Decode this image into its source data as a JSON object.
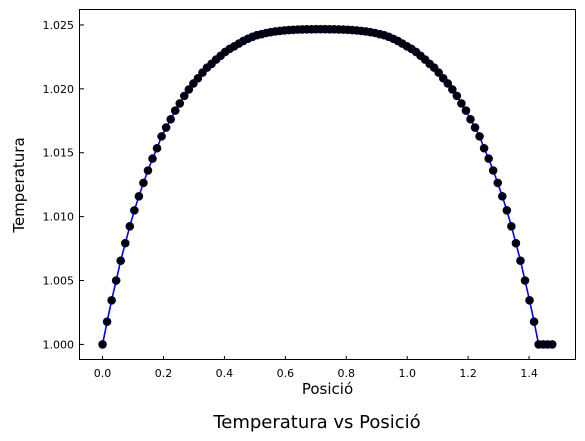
{
  "chart_data": {
    "type": "line",
    "title": "Temperatura vs Posició",
    "xlabel": "Posició",
    "ylabel": "Temperatura",
    "xlim": [
      -0.074,
      1.554
    ],
    "ylim": [
      0.99878,
      1.02617
    ],
    "x_ticks": [
      0.0,
      0.2,
      0.4,
      0.6,
      0.8,
      1.0,
      1.2,
      1.4
    ],
    "x_tick_labels": [
      "0.0",
      "0.2",
      "0.4",
      "0.6",
      "0.8",
      "1.0",
      "1.2",
      "1.4"
    ],
    "y_ticks": [
      1.0,
      1.005,
      1.01,
      1.015,
      1.02,
      1.025
    ],
    "y_tick_labels": [
      "1.000",
      "1.005",
      "1.010",
      "1.015",
      "1.020",
      "1.025"
    ],
    "grid": false,
    "legend": "none",
    "series": [
      {
        "line_color": "#0000ff",
        "marker_color": "#000000",
        "marker": "circle",
        "x": [
          0.0,
          0.0149,
          0.0298,
          0.0447,
          0.0596,
          0.0746,
          0.0895,
          0.1044,
          0.1193,
          0.1342,
          0.1491,
          0.164,
          0.1789,
          0.1938,
          0.2087,
          0.2237,
          0.2386,
          0.2535,
          0.2684,
          0.2833,
          0.2982,
          0.3131,
          0.328,
          0.3429,
          0.3578,
          0.3728,
          0.3877,
          0.4026,
          0.4175,
          0.4324,
          0.4473,
          0.4622,
          0.4771,
          0.492,
          0.5069,
          0.5218,
          0.5368,
          0.5517,
          0.5666,
          0.5815,
          0.5964,
          0.6113,
          0.6262,
          0.6411,
          0.656,
          0.6709,
          0.6859,
          0.7008,
          0.7157,
          0.7306,
          0.7455,
          0.7604,
          0.7753,
          0.7902,
          0.8051,
          0.82,
          0.8349,
          0.8499,
          0.8648,
          0.8797,
          0.8946,
          0.9095,
          0.9244,
          0.9393,
          0.9542,
          0.9691,
          0.984,
          0.999,
          1.0139,
          1.0288,
          1.0437,
          1.0586,
          1.0735,
          1.0884,
          1.1033,
          1.1182,
          1.1331,
          1.1481,
          1.163,
          1.1779,
          1.1928,
          1.2077,
          1.2226,
          1.2375,
          1.2524,
          1.2673,
          1.2822,
          1.2971,
          1.3121,
          1.327,
          1.3419,
          1.3568,
          1.3717,
          1.3866,
          1.4015,
          1.4164,
          1.4313,
          1.4462,
          1.4612,
          1.4761
        ],
        "y": [
          1.0,
          1.00178,
          1.00345,
          1.005,
          1.00655,
          1.00792,
          1.00924,
          1.01049,
          1.01159,
          1.01264,
          1.01361,
          1.01454,
          1.01535,
          1.01628,
          1.01697,
          1.01762,
          1.0183,
          1.01886,
          1.01945,
          1.01995,
          1.02042,
          1.02083,
          1.02127,
          1.02166,
          1.02196,
          1.02229,
          1.02259,
          1.02289,
          1.02313,
          1.02333,
          1.02354,
          1.02375,
          1.02392,
          1.02407,
          1.0242,
          1.02428,
          1.02437,
          1.02443,
          1.02449,
          1.02453,
          1.02457,
          1.0246,
          1.02462,
          1.02464,
          1.02465,
          1.02466,
          1.02466,
          1.02467,
          1.02467,
          1.02467,
          1.02466,
          1.02466,
          1.02465,
          1.02464,
          1.02462,
          1.0246,
          1.02457,
          1.02453,
          1.02449,
          1.02443,
          1.02437,
          1.02428,
          1.0242,
          1.02407,
          1.02392,
          1.02375,
          1.02354,
          1.02333,
          1.02313,
          1.02289,
          1.02259,
          1.02229,
          1.02196,
          1.02166,
          1.02127,
          1.02083,
          1.02042,
          1.01995,
          1.01945,
          1.01886,
          1.0183,
          1.01762,
          1.01697,
          1.01628,
          1.01535,
          1.01454,
          1.01361,
          1.01264,
          1.01159,
          1.01049,
          1.00924,
          1.00792,
          1.00655,
          1.005,
          1.00345,
          1.00178,
          1.0,
          1.0,
          1.0,
          1.0
        ]
      }
    ]
  }
}
